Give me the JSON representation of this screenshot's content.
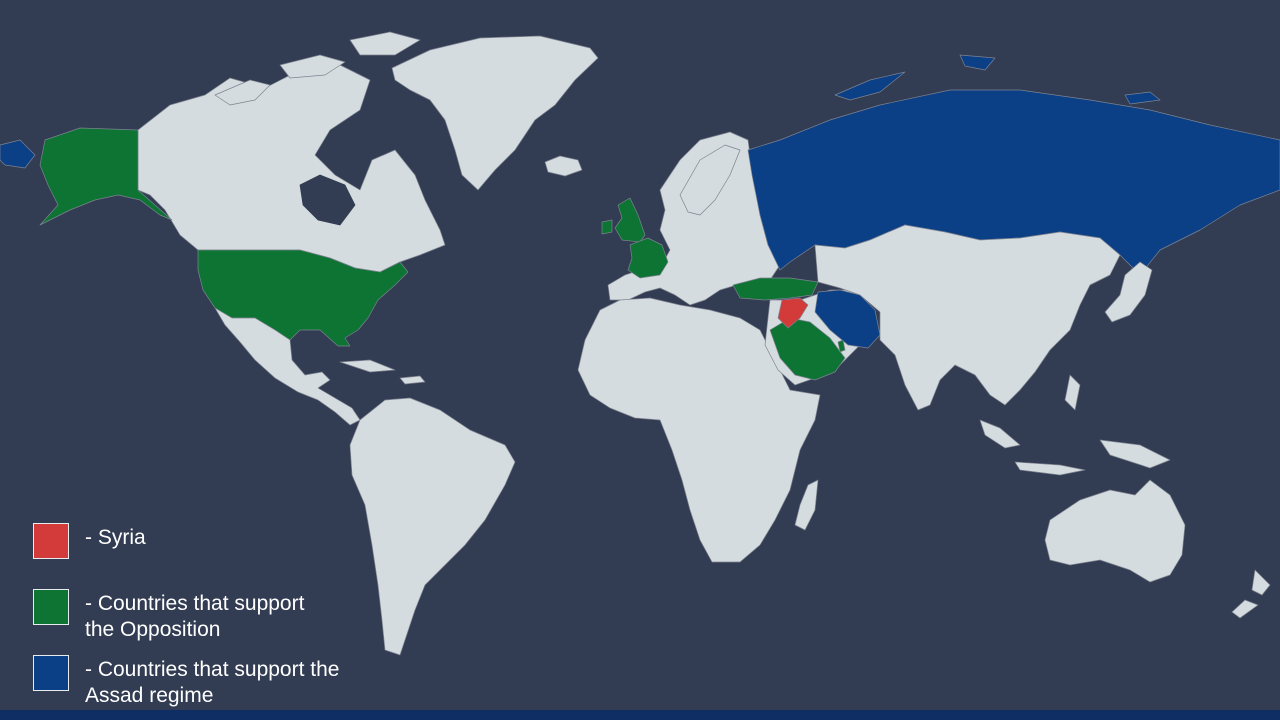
{
  "colors": {
    "background": "#323c52",
    "land": "#d5dcdf",
    "syria": "#d33a3a",
    "opposition": "#0d7434",
    "assad": "#0b3f86",
    "bottom_bar": "#0f2e63"
  },
  "legend": {
    "syria": {
      "label": "- Syria",
      "color": "#d33a3a"
    },
    "opposition": {
      "label_line1": "- Countries that support",
      "label_line2": "the Opposition",
      "color": "#0d7434"
    },
    "assad": {
      "label_line1": "- Countries that support the",
      "label_line2": "Assad regime",
      "color": "#0b3f86"
    }
  },
  "highlighted_countries": {
    "syria": [
      "Syria"
    ],
    "opposition": [
      "United States",
      "United Kingdom",
      "France",
      "Turkey",
      "Saudi Arabia",
      "Qatar"
    ],
    "assad": [
      "Russia",
      "Iran"
    ]
  }
}
